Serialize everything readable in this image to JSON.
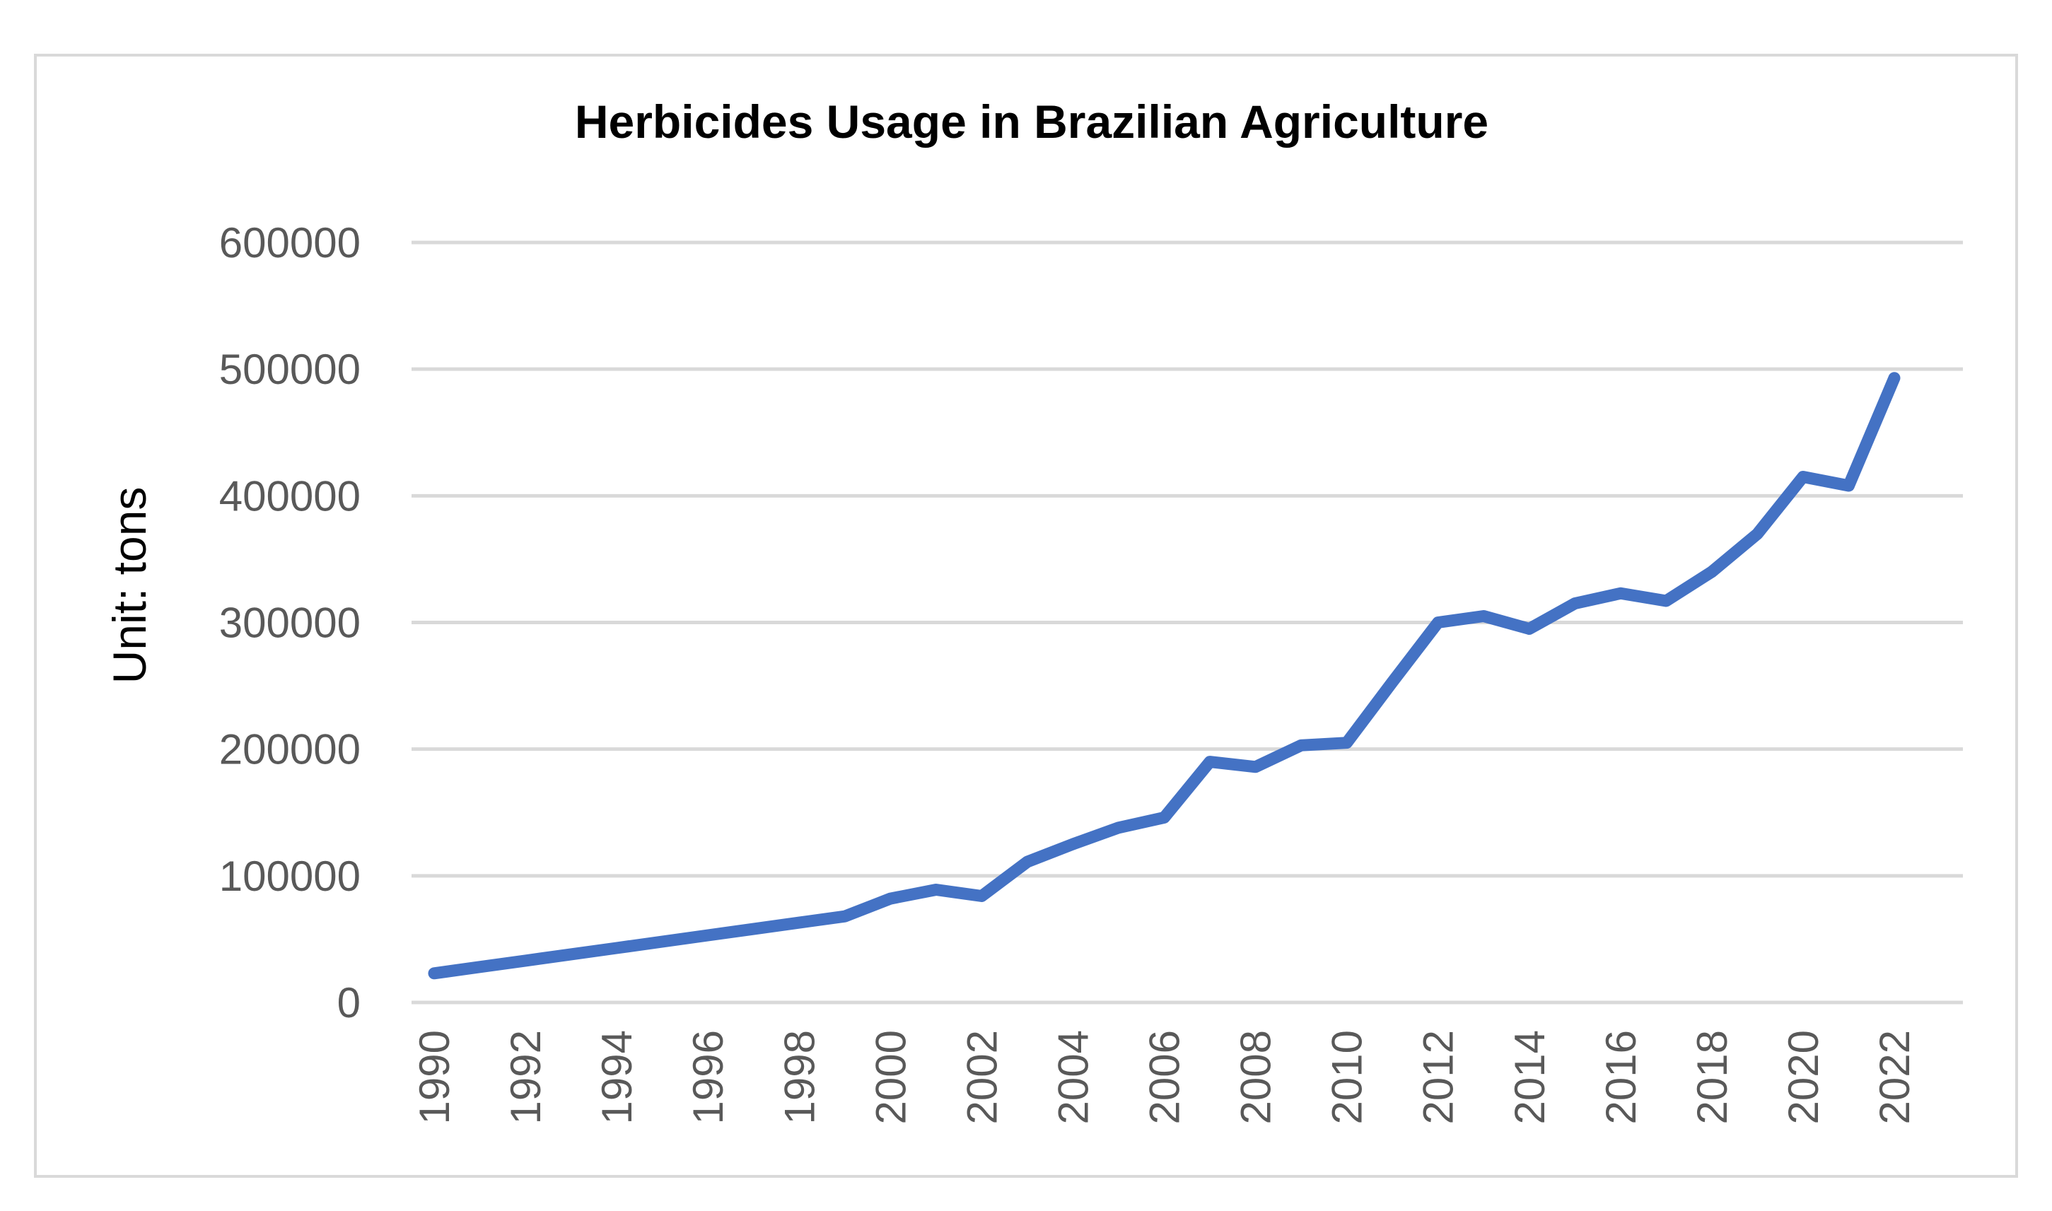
{
  "chart_data": {
    "type": "line",
    "title": "Herbicides Usage in Brazilian Agriculture",
    "xlabel": "",
    "ylabel": "Unit: tons",
    "ylim": [
      0,
      600000
    ],
    "yticks": [
      0,
      100000,
      200000,
      300000,
      400000,
      500000,
      600000
    ],
    "xticks": [
      1990,
      1992,
      1994,
      1996,
      1998,
      2000,
      2002,
      2004,
      2006,
      2008,
      2010,
      2012,
      2014,
      2016,
      2018,
      2020,
      2022
    ],
    "grid": true,
    "legend": "none",
    "x": [
      1990,
      1991,
      1992,
      1993,
      1994,
      1995,
      1996,
      1997,
      1998,
      1999,
      2000,
      2001,
      2002,
      2003,
      2004,
      2005,
      2006,
      2007,
      2008,
      2009,
      2010,
      2011,
      2012,
      2013,
      2014,
      2015,
      2016,
      2017,
      2018,
      2019,
      2020,
      2021,
      2022
    ],
    "series": [
      {
        "color": "#4472c4",
        "values": [
          23000,
          28000,
          33000,
          38000,
          43000,
          48000,
          53000,
          58000,
          63000,
          68000,
          82000,
          89000,
          84000,
          111000,
          125000,
          138000,
          146000,
          190000,
          186000,
          203000,
          205000,
          253000,
          300000,
          305000,
          295000,
          315000,
          323000,
          317000,
          340000,
          370000,
          415000,
          408000,
          493000
        ]
      }
    ]
  }
}
